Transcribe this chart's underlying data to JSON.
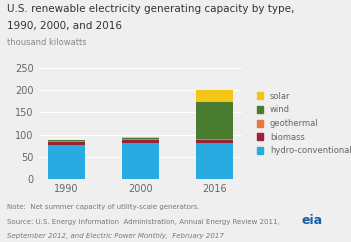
{
  "title_line1": "U.S. renewable electricity generating capacity by type,",
  "title_line2": "1990, 2000, and 2016",
  "ylabel": "thousand kilowatts",
  "categories": [
    "1990",
    "2000",
    "2016"
  ],
  "series": {
    "hydro-conventional": [
      76,
      80,
      80
    ],
    "biomass": [
      7,
      7,
      7
    ],
    "geothermal": [
      3,
      3,
      4
    ],
    "wind": [
      1,
      2,
      82
    ],
    "solar": [
      1,
      2,
      27
    ]
  },
  "colors": {
    "hydro-conventional": "#29ABE2",
    "biomass": "#9B2335",
    "geothermal": "#E8793A",
    "wind": "#4A7C2F",
    "solar": "#F5C518"
  },
  "ylim": [
    0,
    250
  ],
  "yticks": [
    0,
    50,
    100,
    150,
    200,
    250
  ],
  "note1": "Note:  Net summer capacity of utility-scale generators.",
  "note2": "Source: U.S. Energy Information  Administration, Annual Energy Review 2011,",
  "note3": "September 2012, and Electric Power Monthly,  February 2017",
  "bg_color": "#EFEFEF",
  "bar_width": 0.5
}
